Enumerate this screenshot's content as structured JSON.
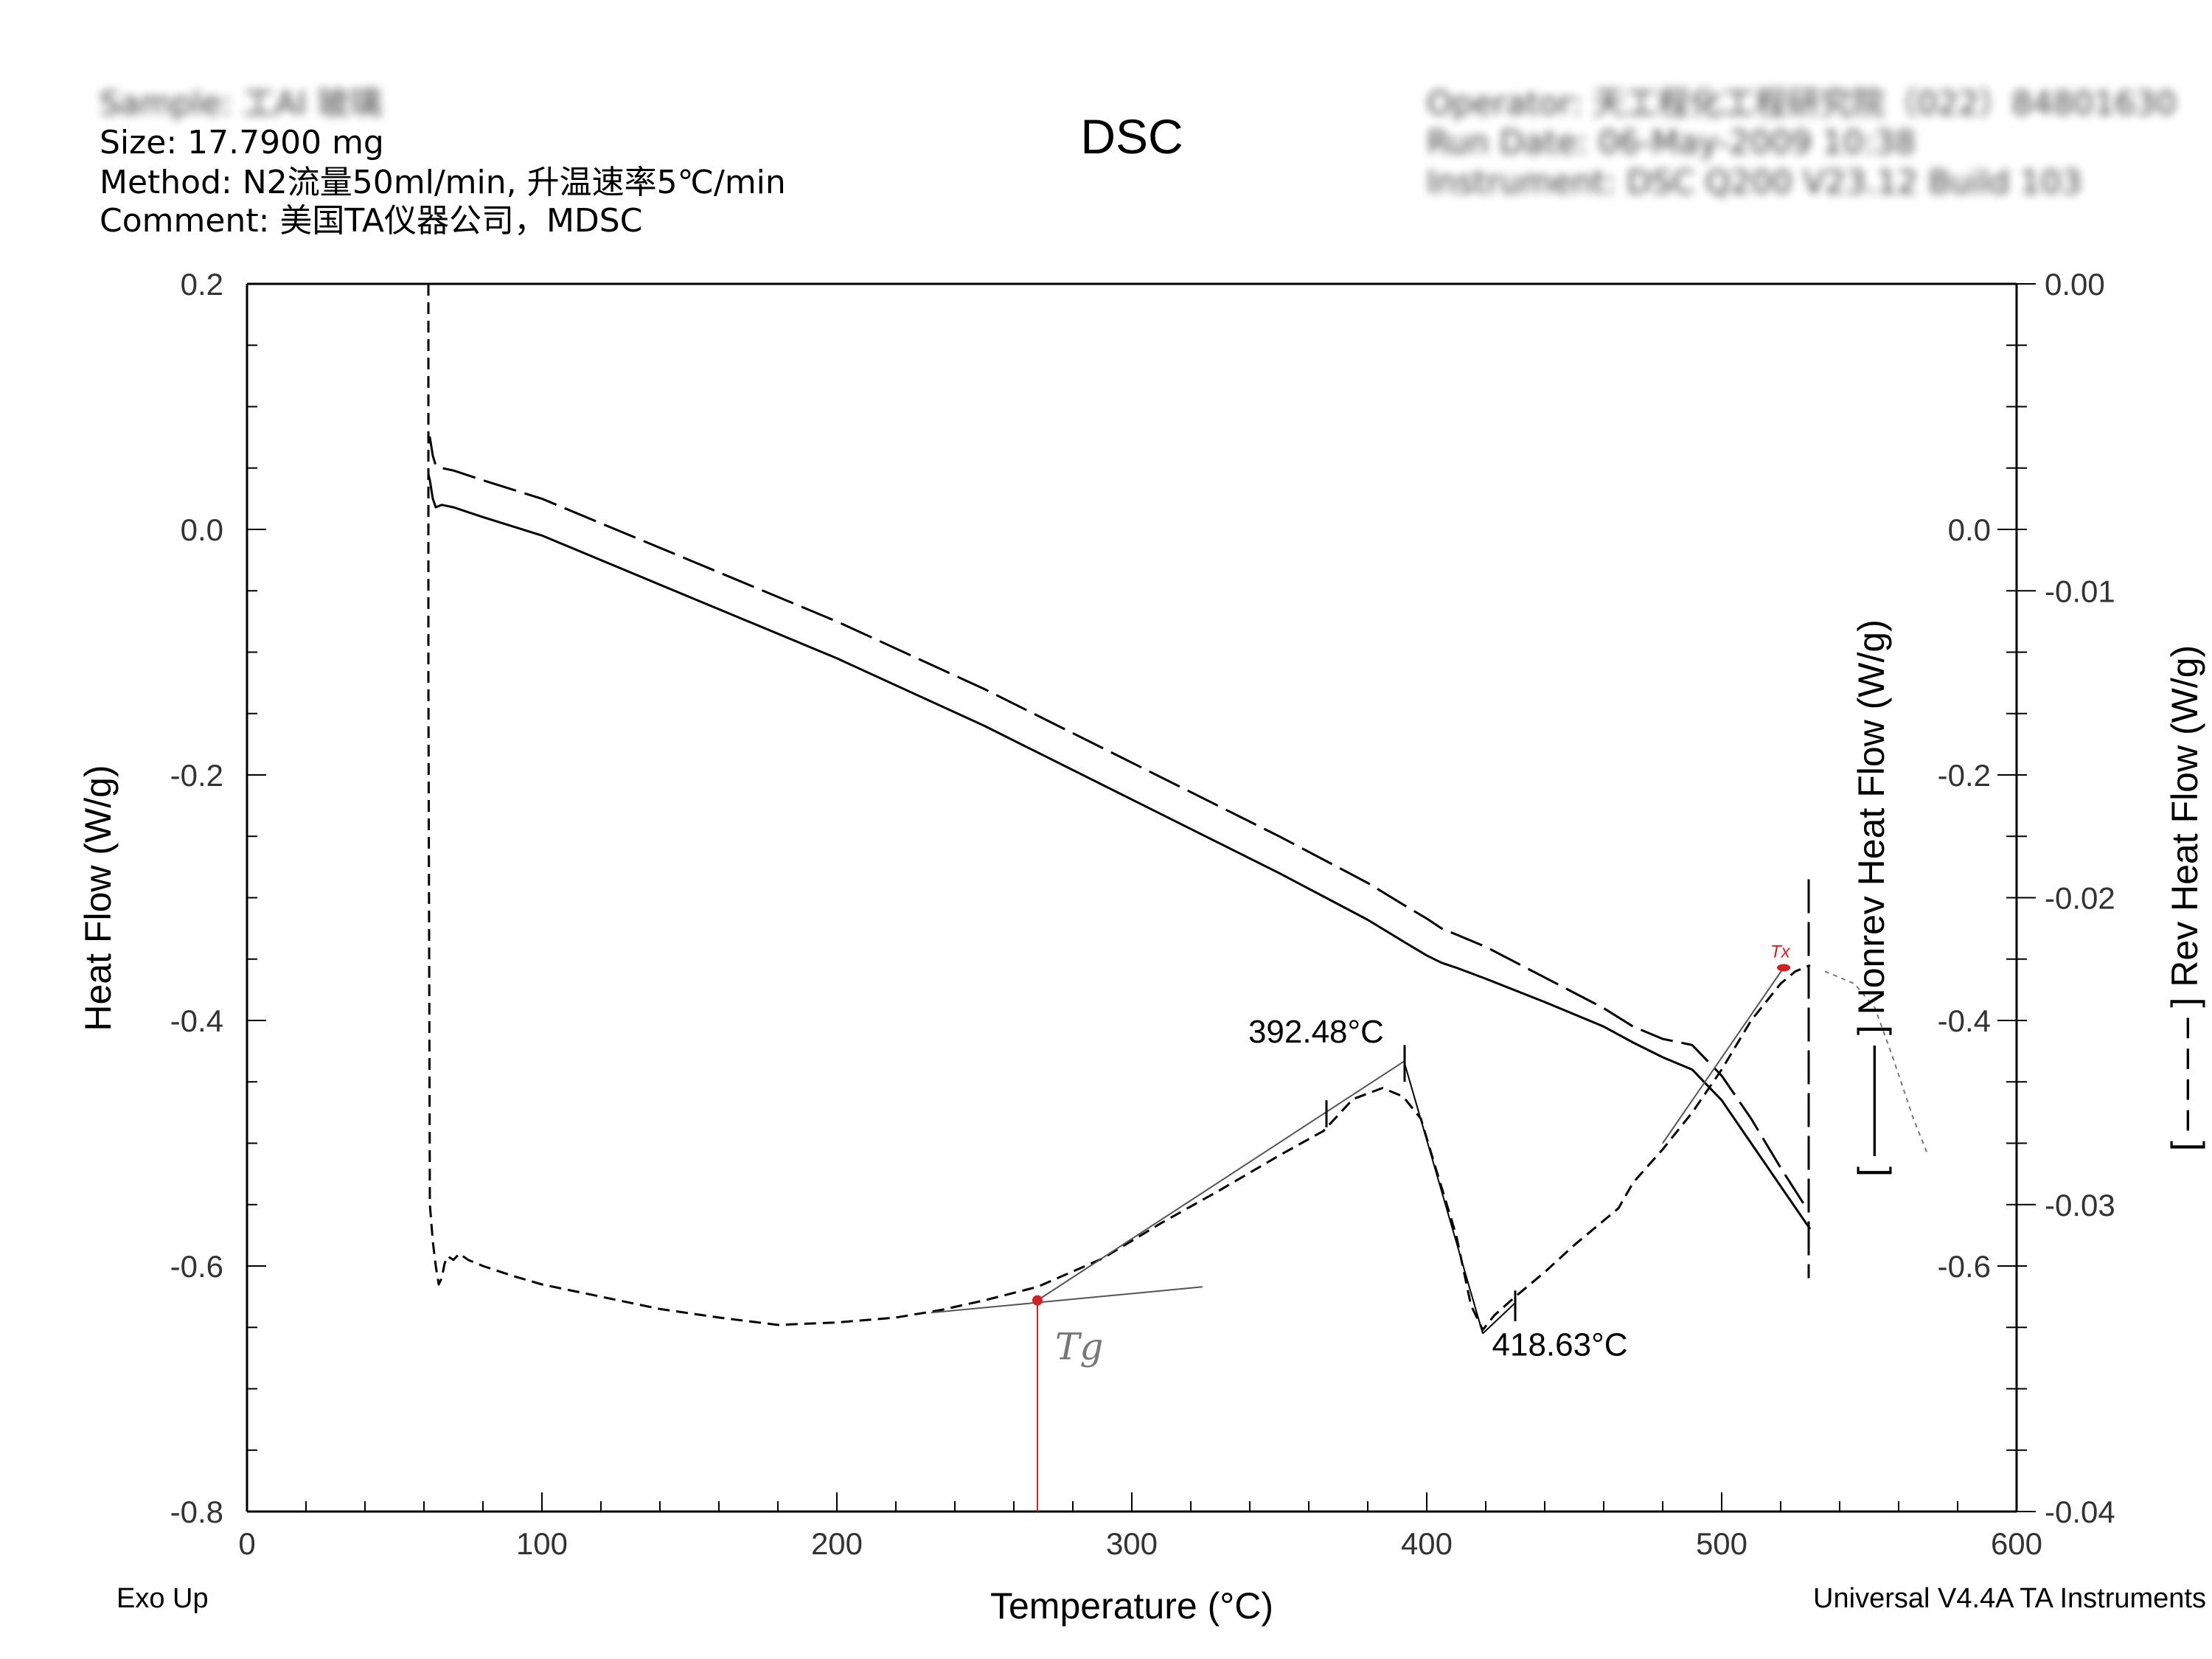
{
  "header": {
    "sample": "Sample: 工AI 玻璃",
    "size": "Size: 17.7900 mg",
    "method": "Method: N2流量50ml/min, 升温速率5℃/min",
    "comment": "Comment: 美国TA仪器公司，MDSC",
    "operator": "Operator: 天工程化工程研究院（022）84801630",
    "run_date": "Run Date: 06-May-2009 10:38",
    "instrument": "Instrument: DSC Q200 V23.12 Build 103"
  },
  "footer": {
    "exo": "Exo Up",
    "software": "Universal V4.4A TA Instruments"
  },
  "colors": {
    "axis": "#000000",
    "curve": "#000000",
    "annotation_red": "#d42020",
    "tangent_gray": "#555555"
  },
  "chart_data": {
    "type": "line",
    "title": "DSC",
    "xlabel": "Temperature (°C)",
    "ylabel_left": "Heat Flow (W/g)",
    "ylabel_right_inner": "[ ——— ] Nonrev Heat Flow (W/g)",
    "ylabel_right_outer": "[ – – – – ] Rev Heat Flow (W/g)",
    "xlim": [
      0,
      600
    ],
    "x_ticks": [
      0,
      100,
      200,
      300,
      400,
      500,
      600
    ],
    "y_left_lim": [
      -0.8,
      0.2
    ],
    "y_left_ticks": [
      "0.2",
      "0.0",
      "-0.2",
      "-0.4",
      "-0.6",
      "-0.8"
    ],
    "y_nonrev_lim": [
      -0.8,
      0.2
    ],
    "y_nonrev_ticks": [
      "0.0",
      "-0.2",
      "-0.4",
      "-0.6"
    ],
    "y_rev_lim": [
      -0.04,
      0.0
    ],
    "y_rev_ticks": [
      "0.00",
      "-0.01",
      "-0.02",
      "-0.03",
      "-0.04"
    ],
    "grid": false,
    "series": [
      {
        "style": "short-dash",
        "axis": "left",
        "x": [
          61.5,
          61.5,
          62,
          63,
          64,
          65,
          66,
          67,
          68,
          70,
          72,
          75,
          80,
          90,
          100,
          120,
          140,
          160,
          180,
          200,
          220,
          235,
          250,
          268,
          290,
          310,
          330,
          350,
          365,
          375,
          385,
          392,
          398,
          403,
          410,
          415,
          419,
          423,
          430,
          440,
          450,
          460,
          465,
          470,
          480,
          490,
          500,
          510,
          520,
          525,
          530
        ],
        "y": [
          0.2,
          -0.12,
          -0.55,
          -0.58,
          -0.6,
          -0.615,
          -0.61,
          -0.598,
          -0.592,
          -0.595,
          -0.59,
          -0.595,
          -0.6,
          -0.608,
          -0.615,
          -0.625,
          -0.635,
          -0.642,
          -0.648,
          -0.646,
          -0.642,
          -0.636,
          -0.628,
          -0.617,
          -0.594,
          -0.565,
          -0.538,
          -0.51,
          -0.49,
          -0.464,
          -0.455,
          -0.462,
          -0.48,
          -0.52,
          -0.575,
          -0.632,
          -0.652,
          -0.64,
          -0.625,
          -0.605,
          -0.583,
          -0.563,
          -0.553,
          -0.532,
          -0.505,
          -0.475,
          -0.44,
          -0.4,
          -0.37,
          -0.36,
          -0.355
        ]
      },
      {
        "style": "long-dash",
        "axis": "left",
        "x": [
          61.5,
          62,
          63,
          64,
          66,
          70,
          80,
          100,
          150,
          200,
          250,
          300,
          350,
          380,
          393,
          400,
          405,
          410,
          420,
          440,
          460,
          470,
          480,
          490,
          500,
          510,
          520,
          528
        ],
        "y": [
          0.07,
          0.075,
          0.06,
          0.052,
          0.05,
          0.048,
          0.04,
          0.025,
          -0.025,
          -0.075,
          -0.13,
          -0.19,
          -0.25,
          -0.288,
          -0.307,
          -0.317,
          -0.325,
          -0.33,
          -0.34,
          -0.365,
          -0.39,
          -0.405,
          -0.415,
          -0.42,
          -0.445,
          -0.48,
          -0.52,
          -0.55
        ]
      },
      {
        "style": "solid",
        "axis": "left",
        "x": [
          61.5,
          62,
          63,
          64,
          66,
          70,
          80,
          100,
          150,
          200,
          250,
          300,
          350,
          380,
          393,
          400,
          405,
          410,
          420,
          440,
          460,
          470,
          480,
          490,
          500,
          510,
          520,
          530
        ],
        "y": [
          0.045,
          0.04,
          0.025,
          0.018,
          0.02,
          0.018,
          0.01,
          -0.005,
          -0.055,
          -0.105,
          -0.16,
          -0.22,
          -0.28,
          -0.318,
          -0.337,
          -0.347,
          -0.353,
          -0.357,
          -0.366,
          -0.385,
          -0.405,
          -0.418,
          -0.43,
          -0.44,
          -0.465,
          -0.5,
          -0.535,
          -0.57
        ]
      }
    ],
    "annotations": [
      {
        "label": "392.48°C",
        "x": 392.48
      },
      {
        "label": "418.63°C",
        "x": 418.63
      },
      {
        "label": "Tg",
        "x": 268,
        "y": -0.628
      },
      {
        "label": "Tx",
        "x": 521,
        "y": -0.357
      }
    ]
  }
}
